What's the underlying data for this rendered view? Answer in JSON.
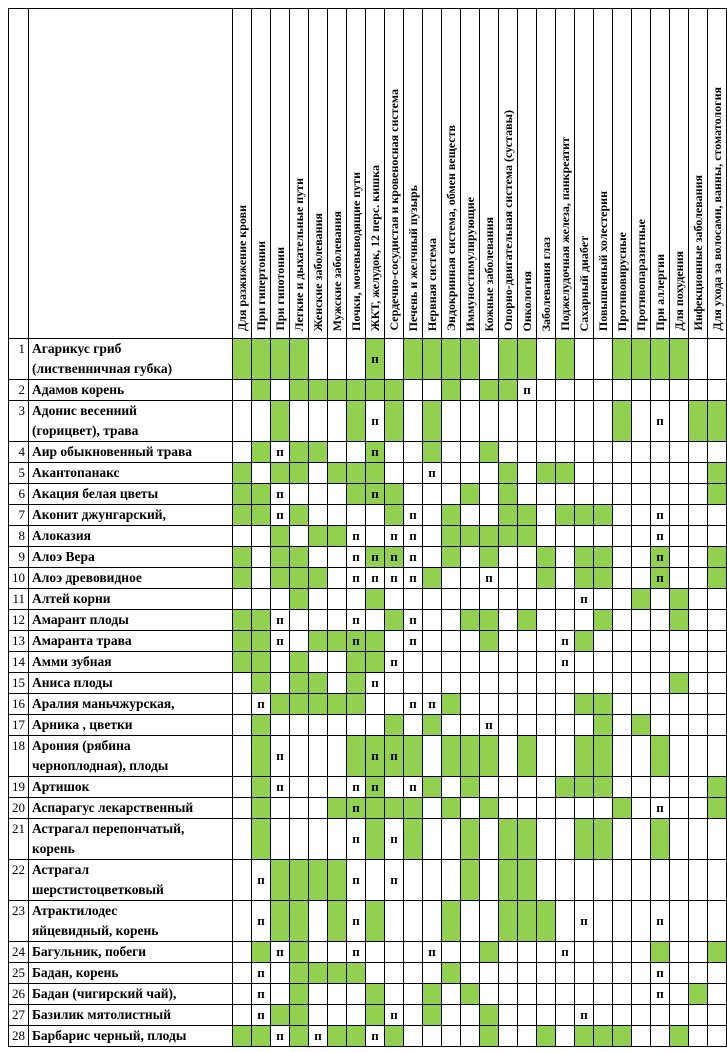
{
  "table": {
    "marker": "п",
    "colors": {
      "filled": "#92d050",
      "grid": "#000000",
      "background": "#ffffff"
    },
    "columns": [
      "Для разжижение крови",
      "При гипертонии",
      "При гипотонии",
      "Легкие и дыхательные пути",
      "Женские заболевания",
      "Мужские заболевания",
      "Почки, мочевыводящие пути",
      "ЖКТ, желудок, 12 перс. кишка",
      "Сердечно-сосудистая и кровеносная система",
      "Печень и желчный пузырь",
      "Нервная система",
      "Эндокринная система, обмен веществ",
      "Иммуностимулирующие",
      "Кожные заболевания",
      "Опорно-двигательная система (суставы)",
      "Онкология",
      "Заболевания глаз",
      "Поджелудочная железа, панкреатит",
      "Сахарный диабет",
      "Повышенный холестерин",
      "Противовирусные",
      "Противопаразитные",
      "При аллергии",
      "Для похудения",
      "Инфекционные заболевания",
      "Для ухода за волосами, ванны, стоматология"
    ],
    "rows": [
      {
        "num": "1",
        "label": "Агарикус гриб\n(лиственничная губка)",
        "cells": "gggg...P.gggg.gg.g..gggg.."
      },
      {
        "num": "2",
        "label": "Адамов корень",
        "cells": ".g.gggggg..g.ggp.........."
      },
      {
        "num": "3",
        "label": "Адонис весенний\n(горицвет), трава",
        "cells": "..g...gpg.g.........g.p.gg"
      },
      {
        "num": "4",
        "label": "Аир обыкновенный трава",
        "cells": ".gpgg..P..g..g............"
      },
      {
        "num": "5",
        "label": "Акантопанакс",
        "cells": "g.gg.ggg..p...g.gg.......g"
      },
      {
        "num": "6",
        "label": "Акация белая цветы",
        "cells": "ggp...gPg...g.g..........g"
      },
      {
        "num": "7",
        "label": "Аконит джунгарский,",
        "cells": "ggpg....gp.g..gg.ggg..p..."
      },
      {
        "num": "8",
        "label": "Алоказия",
        "cells": "..g.ggp.pp.ggggg......p..."
      },
      {
        "num": "9",
        "label": "Алоэ Вера",
        "cells": "g.gg..pPPp.g.g..g.gg..P..g"
      },
      {
        "num": "10",
        "label": "Алоэ древовидное",
        "cells": "g.ggg.ppppg..p..g.gg..P..g"
      },
      {
        "num": "11",
        "label": "Алтей корни",
        "cells": "...g...g..........p..g.g.."
      },
      {
        "num": "12",
        "label": "Амарант плоды",
        "cells": "ggp...p.gp..gg.g...g...g.."
      },
      {
        "num": "13",
        "label": "Амаранта трава",
        "cells": "ggp.ggPg.p...g...pg......."
      },
      {
        "num": "14",
        "label": "Амми зубная",
        "cells": "gg.g..ggp........p........"
      },
      {
        "num": "15",
        "label": "Аниса плоды",
        "cells": ".g.gg.gp...............g.."
      },
      {
        "num": "16",
        "label": "Аралия маньчжурская,",
        "cells": ".pggggg..ppg......gg......"
      },
      {
        "num": "17",
        "label": "Арника , цветки",
        "cells": ".g......g.g..p.....g.g...."
      },
      {
        "num": "18",
        "label": "Арония (рябина\nчерноплодная), плоды",
        "cells": ".gp...gPPg.ggg.g..gg..g..."
      },
      {
        "num": "19",
        "label": "Артишок",
        "cells": ".gp...pP.pg.g....ggg.....g"
      },
      {
        "num": "20",
        "label": "Аспарагус лекарственный",
        "cells": ".g...gPggg.g.g......g.p..g"
      },
      {
        "num": "21",
        "label": "Астрагал перепончатый,\nкорень",
        "cells": ".g....pgpg..g.gg..gg..g..."
      },
      {
        "num": "22",
        "label": "Астрагал\nшерстистоцветковый",
        "cells": ".pggggp.p...g.gg.........."
      },
      {
        "num": "23",
        "label": "Атрактилодес\nяйцевидный, корень",
        "cells": ".pgg.gpg...g..ggg.p...p..."
      },
      {
        "num": "24",
        "label": "Багульник, побеги",
        "cells": ".gpg..p...p..g...p....g..g"
      },
      {
        "num": "25",
        "label": "Бадан, корень",
        "cells": ".p.gggg....g..........p..."
      },
      {
        "num": "26",
        "label": "Бадан (чигирский чай),",
        "cells": ".p.g...g..g.g.........p.g."
      },
      {
        "num": "27",
        "label": "Базилик мятолистный",
        "cells": ".pgg...gp.g..g....p......."
      },
      {
        "num": "28",
        "label": "Барбарис черный, плоды",
        "cells": "ggpgpggpg....g..g.ggg..g.."
      }
    ]
  }
}
